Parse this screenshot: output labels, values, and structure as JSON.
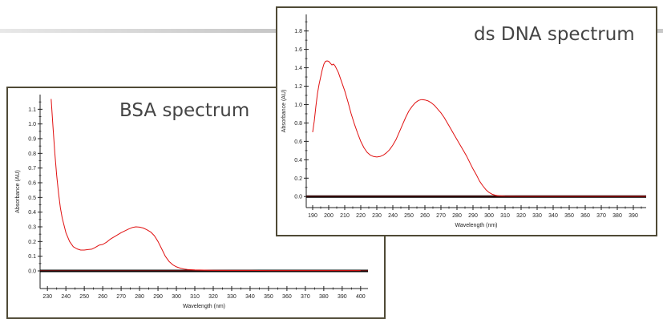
{
  "chart_data": [
    {
      "type": "line",
      "title": "BSA spectrum",
      "xlabel": "Wavelength (nm)",
      "ylabel": "Absorbance (AU)",
      "xlim": [
        226,
        404
      ],
      "ylim": [
        -0.12,
        1.2
      ],
      "x_ticks": [
        230,
        240,
        250,
        260,
        270,
        280,
        290,
        300,
        310,
        320,
        330,
        340,
        350,
        360,
        370,
        380,
        390,
        400
      ],
      "y_ticks": [
        "0.0",
        "0.1",
        "0.2",
        "0.3",
        "0.4",
        "0.5",
        "0.6",
        "0.7",
        "0.8",
        "0.9",
        "1.0",
        "1.1"
      ],
      "baseline": 0.0,
      "series": [
        {
          "color": "#e01010",
          "x": [
            232,
            233,
            234,
            235,
            236,
            237,
            238,
            240,
            242,
            244,
            246,
            248,
            250,
            252,
            254,
            256,
            258,
            260,
            262,
            264,
            266,
            268,
            270,
            272,
            274,
            276,
            278,
            280,
            282,
            284,
            286,
            288,
            290,
            292,
            294,
            296,
            298,
            300,
            302,
            304,
            306,
            310,
            320,
            330,
            340,
            350,
            360,
            370,
            380,
            390,
            400
          ],
          "y": [
            1.17,
            0.98,
            0.8,
            0.65,
            0.53,
            0.43,
            0.36,
            0.26,
            0.2,
            0.165,
            0.15,
            0.142,
            0.142,
            0.145,
            0.148,
            0.16,
            0.175,
            0.18,
            0.195,
            0.215,
            0.23,
            0.245,
            0.26,
            0.272,
            0.285,
            0.295,
            0.3,
            0.298,
            0.292,
            0.28,
            0.265,
            0.24,
            0.2,
            0.15,
            0.1,
            0.065,
            0.042,
            0.028,
            0.019,
            0.013,
            0.01,
            0.007,
            0.004,
            0.003,
            0.003,
            0.002,
            0.002,
            0.002,
            0.002,
            0.002,
            0.002
          ]
        }
      ]
    },
    {
      "type": "line",
      "title": "ds DNA spectrum",
      "xlabel": "Wavelength (nm)",
      "ylabel": "Absorbance (AU)",
      "xlim": [
        186,
        398
      ],
      "ylim": [
        -0.12,
        1.98
      ],
      "x_ticks": [
        190,
        200,
        210,
        220,
        230,
        240,
        250,
        260,
        270,
        280,
        290,
        300,
        310,
        320,
        330,
        340,
        350,
        360,
        370,
        380,
        390
      ],
      "y_ticks": [
        "0.0",
        "0.2",
        "0.4",
        "0.6",
        "0.8",
        "1.0",
        "1.2",
        "1.4",
        "1.6",
        "1.8"
      ],
      "baseline": 0.0,
      "series": [
        {
          "color": "#e01010",
          "x": [
            190,
            191,
            192,
            193,
            194,
            195,
            196,
            197,
            198,
            199,
            200,
            201,
            202,
            203,
            204,
            206,
            208,
            210,
            212,
            214,
            216,
            218,
            220,
            222,
            224,
            226,
            228,
            230,
            232,
            234,
            236,
            238,
            240,
            242,
            244,
            246,
            248,
            250,
            252,
            254,
            256,
            258,
            260,
            262,
            264,
            266,
            268,
            270,
            272,
            274,
            276,
            278,
            280,
            282,
            284,
            286,
            288,
            290,
            292,
            294,
            296,
            298,
            300,
            302,
            304,
            306,
            310,
            320,
            330,
            340,
            350,
            360,
            370,
            380,
            390,
            398
          ],
          "y": [
            0.7,
            0.82,
            0.98,
            1.12,
            1.22,
            1.3,
            1.38,
            1.44,
            1.47,
            1.475,
            1.47,
            1.45,
            1.43,
            1.44,
            1.42,
            1.35,
            1.25,
            1.15,
            1.03,
            0.9,
            0.79,
            0.69,
            0.6,
            0.53,
            0.48,
            0.45,
            0.435,
            0.43,
            0.435,
            0.45,
            0.475,
            0.51,
            0.56,
            0.62,
            0.7,
            0.78,
            0.86,
            0.93,
            0.98,
            1.02,
            1.045,
            1.055,
            1.05,
            1.04,
            1.02,
            0.99,
            0.95,
            0.91,
            0.86,
            0.8,
            0.74,
            0.68,
            0.62,
            0.56,
            0.5,
            0.44,
            0.37,
            0.3,
            0.24,
            0.17,
            0.12,
            0.075,
            0.045,
            0.025,
            0.014,
            0.008,
            0.004,
            0.002,
            0.002,
            0.002,
            0.002,
            0.002,
            0.002,
            0.002,
            0.002,
            0.002
          ]
        }
      ]
    }
  ]
}
